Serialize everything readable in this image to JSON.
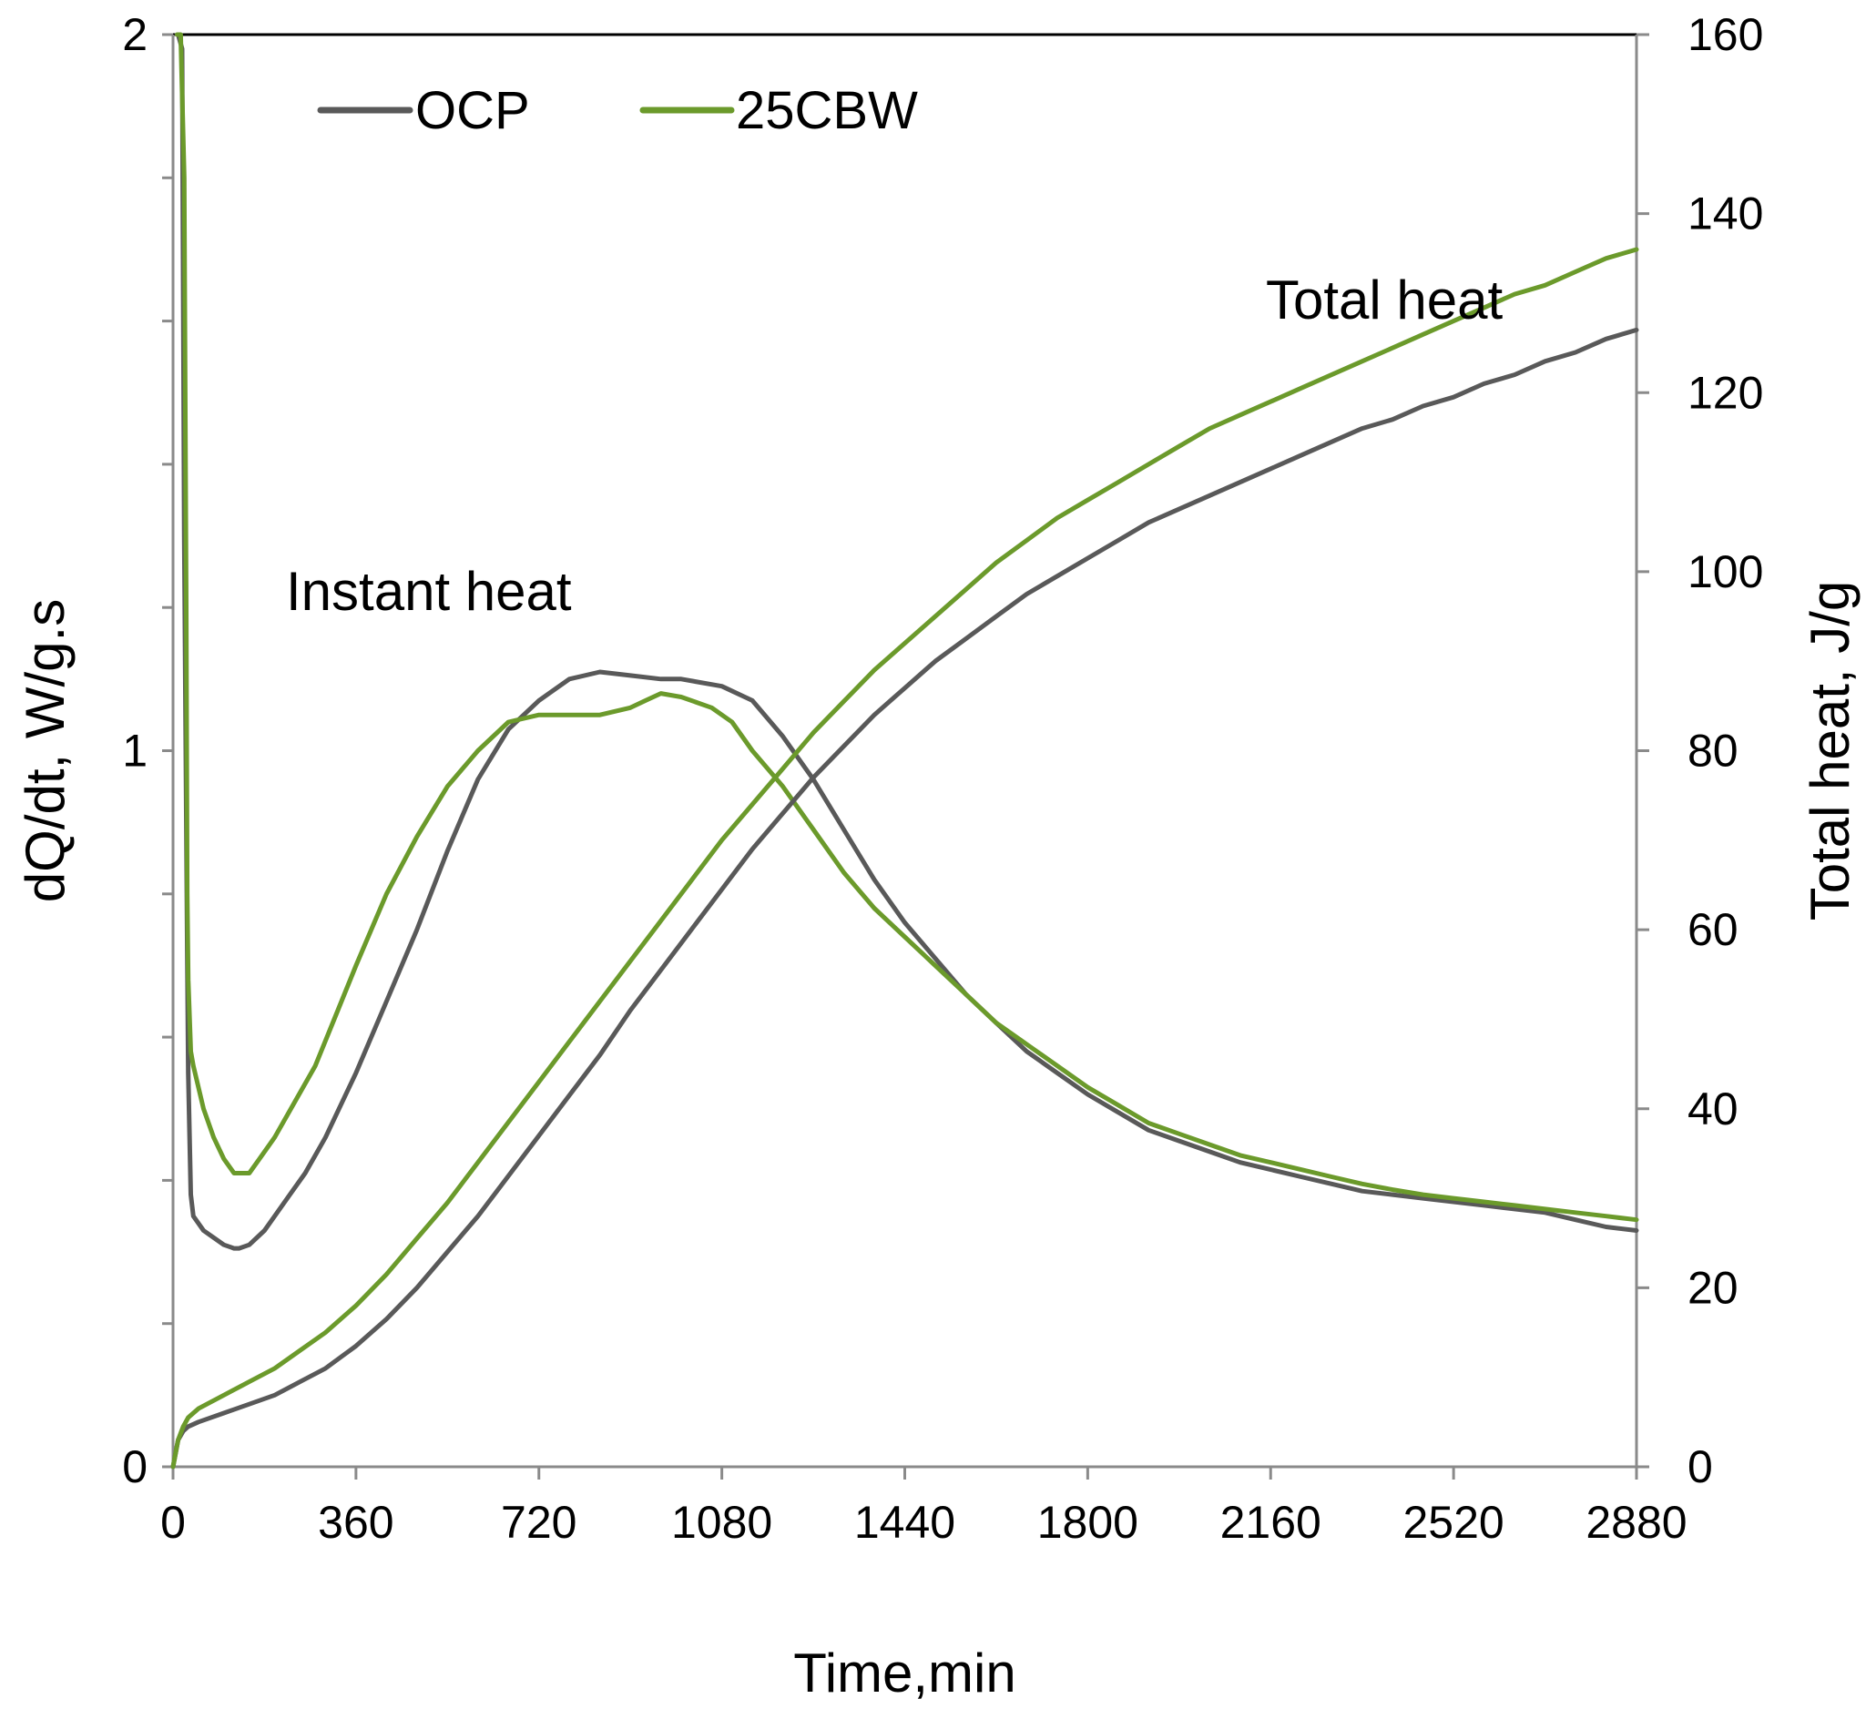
{
  "chart_data": {
    "type": "line",
    "xlabel": "Time,min",
    "ylabel": "dQ/dt, W/g.s",
    "y2label": "Total heat, J/g",
    "xlim": [
      0,
      2880
    ],
    "ylim": [
      0,
      2
    ],
    "y2lim": [
      0,
      160
    ],
    "xticks": [
      "0",
      "360",
      "720",
      "1080",
      "1440",
      "1800",
      "2160",
      "2520",
      "2880"
    ],
    "yticks": [
      "0",
      "1",
      "2"
    ],
    "y2ticks": [
      "0",
      "20",
      "40",
      "60",
      "80",
      "100",
      "120",
      "140",
      "160"
    ],
    "legend_position": "top-left",
    "annotations": {
      "instant": "Instant heat",
      "total": "Total heat"
    },
    "colors": {
      "OCP": "#595959",
      "25CBW": "#6b9a2b",
      "right_axis": "#8a8a8a"
    },
    "series": [
      {
        "name": "OCP",
        "quantity": "instant",
        "axis": "left",
        "x": [
          10,
          18,
          22,
          28,
          30,
          35,
          40,
          60,
          80,
          100,
          120,
          130,
          150,
          180,
          200,
          230,
          260,
          300,
          360,
          420,
          480,
          540,
          600,
          660,
          720,
          780,
          840,
          900,
          960,
          1000,
          1080,
          1140,
          1200,
          1260,
          1320,
          1380,
          1440,
          1500,
          1560,
          1620,
          1680,
          1740,
          1800,
          1860,
          1920,
          1980,
          2040,
          2100,
          2160,
          2220,
          2280,
          2340,
          2400,
          2460,
          2520,
          2580,
          2640,
          2700,
          2760,
          2820,
          2880
        ],
        "y": [
          2.0,
          1.98,
          1.3,
          0.72,
          0.55,
          0.38,
          0.35,
          0.33,
          0.32,
          0.31,
          0.305,
          0.305,
          0.31,
          0.33,
          0.35,
          0.38,
          0.41,
          0.46,
          0.55,
          0.65,
          0.75,
          0.86,
          0.96,
          1.03,
          1.07,
          1.1,
          1.11,
          1.105,
          1.1,
          1.1,
          1.09,
          1.07,
          1.02,
          0.96,
          0.89,
          0.82,
          0.76,
          0.71,
          0.66,
          0.62,
          0.58,
          0.55,
          0.52,
          0.495,
          0.47,
          0.455,
          0.44,
          0.425,
          0.415,
          0.405,
          0.395,
          0.385,
          0.38,
          0.375,
          0.37,
          0.365,
          0.36,
          0.355,
          0.345,
          0.335,
          0.33
        ]
      },
      {
        "name": "25CBW",
        "quantity": "instant",
        "axis": "left",
        "x": [
          8,
          15,
          22,
          26,
          28,
          30,
          35,
          40,
          60,
          80,
          100,
          120,
          130,
          150,
          170,
          200,
          240,
          280,
          320,
          360,
          420,
          480,
          540,
          600,
          660,
          720,
          780,
          840,
          900,
          930,
          960,
          1000,
          1060,
          1100,
          1140,
          1200,
          1260,
          1320,
          1380,
          1440,
          1500,
          1560,
          1620,
          1680,
          1740,
          1800,
          1860,
          1920,
          1980,
          2040,
          2100,
          2160,
          2220,
          2280,
          2340,
          2400,
          2460,
          2520,
          2580,
          2640,
          2700,
          2760,
          2820,
          2880
        ],
        "y": [
          2.0,
          2.0,
          1.8,
          1.2,
          0.8,
          0.68,
          0.58,
          0.56,
          0.5,
          0.46,
          0.43,
          0.41,
          0.41,
          0.41,
          0.43,
          0.46,
          0.51,
          0.56,
          0.63,
          0.7,
          0.8,
          0.88,
          0.95,
          1.0,
          1.04,
          1.05,
          1.05,
          1.05,
          1.06,
          1.07,
          1.08,
          1.075,
          1.06,
          1.04,
          1.0,
          0.95,
          0.89,
          0.83,
          0.78,
          0.74,
          0.7,
          0.66,
          0.62,
          0.59,
          0.56,
          0.53,
          0.505,
          0.48,
          0.465,
          0.45,
          0.435,
          0.425,
          0.415,
          0.405,
          0.395,
          0.387,
          0.38,
          0.375,
          0.37,
          0.365,
          0.36,
          0.355,
          0.35,
          0.345
        ]
      },
      {
        "name": "OCP",
        "quantity": "total",
        "axis": "right",
        "x": [
          0,
          10,
          20,
          30,
          50,
          100,
          150,
          200,
          250,
          300,
          360,
          420,
          480,
          540,
          600,
          660,
          720,
          780,
          840,
          900,
          960,
          1020,
          1080,
          1140,
          1200,
          1260,
          1320,
          1380,
          1440,
          1500,
          1560,
          1620,
          1680,
          1740,
          1800,
          1860,
          1920,
          1980,
          2040,
          2100,
          2160,
          2220,
          2280,
          2340,
          2400,
          2460,
          2520,
          2580,
          2640,
          2700,
          2760,
          2820,
          2880
        ],
        "y": [
          0,
          3,
          4,
          4.5,
          5,
          6,
          7,
          8,
          9.5,
          11,
          13.5,
          16.5,
          20,
          24,
          28,
          32.5,
          37,
          41.5,
          46,
          51,
          55.5,
          60,
          64.5,
          69,
          73,
          77,
          80.5,
          84,
          87,
          90,
          92.5,
          95,
          97.5,
          99.5,
          101.5,
          103.5,
          105.5,
          107,
          108.5,
          110,
          111.5,
          113,
          114.5,
          116,
          117,
          118.5,
          119.5,
          121,
          122,
          123.5,
          124.5,
          126,
          127
        ]
      },
      {
        "name": "25CBW",
        "quantity": "total",
        "axis": "right",
        "x": [
          0,
          10,
          20,
          30,
          50,
          100,
          150,
          200,
          250,
          300,
          360,
          420,
          480,
          540,
          600,
          660,
          720,
          780,
          840,
          900,
          960,
          1020,
          1080,
          1140,
          1200,
          1260,
          1320,
          1380,
          1440,
          1500,
          1560,
          1620,
          1680,
          1740,
          1800,
          1860,
          1920,
          1980,
          2040,
          2100,
          2160,
          2220,
          2280,
          2340,
          2400,
          2460,
          2520,
          2580,
          2640,
          2700,
          2760,
          2820,
          2880
        ],
        "y": [
          0,
          3,
          4.5,
          5.5,
          6.5,
          8,
          9.5,
          11,
          13,
          15,
          18,
          21.5,
          25.5,
          29.5,
          34,
          38.5,
          43,
          47.5,
          52,
          56.5,
          61,
          65.5,
          70,
          74,
          78,
          82,
          85.5,
          89,
          92,
          95,
          98,
          101,
          103.5,
          106,
          108,
          110,
          112,
          114,
          116,
          117.5,
          119,
          120.5,
          122,
          123.5,
          125,
          126.5,
          128,
          129.5,
          131,
          132,
          133.5,
          135,
          136
        ]
      }
    ]
  }
}
